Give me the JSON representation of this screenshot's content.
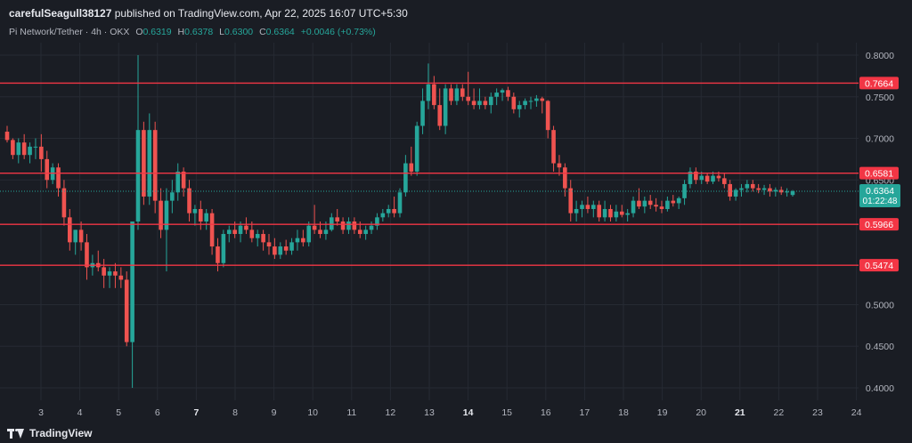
{
  "publisher": {
    "username": "carefulSeagull38127",
    "text": " published on TradingView.com, Apr 22, 2025 16:07 UTC+5:30"
  },
  "legend": {
    "symbol": "Pi Network/Tether · 4h · OKX",
    "open_label": "O",
    "open": "0.6319",
    "high_label": "H",
    "high": "0.6378",
    "low_label": "L",
    "low": "0.6300",
    "close_label": "C",
    "close": "0.6364",
    "change": "+0.0046 (+0.73%)"
  },
  "brand": "TradingView",
  "colors": {
    "background": "#1a1d24",
    "up": "#26a69a",
    "down": "#ef5350",
    "level_line": "#f23645",
    "grid": "#262a33"
  },
  "chart_data": {
    "type": "candlestick",
    "yaxis": {
      "ticks": [
        "0.8000",
        "0.7500",
        "0.7000",
        "0.6500",
        "0.5000",
        "0.4500",
        "0.4000"
      ],
      "ylim": [
        0.385,
        0.815
      ]
    },
    "xaxis": {
      "ticks": [
        "3",
        "4",
        "5",
        "6",
        "7",
        "8",
        "9",
        "10",
        "11",
        "12",
        "13",
        "14",
        "15",
        "16",
        "17",
        "18",
        "19",
        "20",
        "21",
        "22",
        "23",
        "24"
      ],
      "bold_ticks": [
        "7",
        "14",
        "21"
      ]
    },
    "horizontal_levels": [
      {
        "value": 0.7664,
        "label": "0.7664"
      },
      {
        "value": 0.6581,
        "label": "0.6581"
      },
      {
        "value": 0.5966,
        "label": "0.5966"
      },
      {
        "value": 0.5474,
        "label": "0.5474"
      }
    ],
    "last_price": {
      "value": 0.6364,
      "label": "0.6364",
      "countdown": "01:22:48"
    },
    "candles": [
      [
        0.708,
        0.715,
        0.695,
        0.698
      ],
      [
        0.698,
        0.7,
        0.675,
        0.68
      ],
      [
        0.68,
        0.7,
        0.67,
        0.695
      ],
      [
        0.695,
        0.705,
        0.675,
        0.68
      ],
      [
        0.68,
        0.695,
        0.67,
        0.69
      ],
      [
        0.69,
        0.7,
        0.675,
        0.69
      ],
      [
        0.69,
        0.705,
        0.66,
        0.675
      ],
      [
        0.675,
        0.685,
        0.64,
        0.65
      ],
      [
        0.65,
        0.67,
        0.645,
        0.665
      ],
      [
        0.665,
        0.67,
        0.63,
        0.64
      ],
      [
        0.64,
        0.65,
        0.595,
        0.605
      ],
      [
        0.605,
        0.615,
        0.565,
        0.575
      ],
      [
        0.575,
        0.59,
        0.56,
        0.59
      ],
      [
        0.59,
        0.6,
        0.565,
        0.575
      ],
      [
        0.575,
        0.585,
        0.53,
        0.545
      ],
      [
        0.545,
        0.56,
        0.535,
        0.55
      ],
      [
        0.55,
        0.565,
        0.54,
        0.545
      ],
      [
        0.545,
        0.555,
        0.52,
        0.535
      ],
      [
        0.535,
        0.545,
        0.52,
        0.54
      ],
      [
        0.54,
        0.55,
        0.52,
        0.535
      ],
      [
        0.535,
        0.545,
        0.52,
        0.53
      ],
      [
        0.53,
        0.54,
        0.45,
        0.455
      ],
      [
        0.455,
        0.6,
        0.4,
        0.6
      ],
      [
        0.6,
        0.8,
        0.59,
        0.71
      ],
      [
        0.71,
        0.72,
        0.62,
        0.63
      ],
      [
        0.63,
        0.73,
        0.62,
        0.71
      ],
      [
        0.71,
        0.72,
        0.61,
        0.625
      ],
      [
        0.625,
        0.64,
        0.58,
        0.59
      ],
      [
        0.59,
        0.64,
        0.54,
        0.625
      ],
      [
        0.625,
        0.65,
        0.61,
        0.635
      ],
      [
        0.635,
        0.67,
        0.625,
        0.66
      ],
      [
        0.66,
        0.665,
        0.63,
        0.64
      ],
      [
        0.64,
        0.65,
        0.6,
        0.61
      ],
      [
        0.61,
        0.62,
        0.595,
        0.615
      ],
      [
        0.615,
        0.625,
        0.59,
        0.6
      ],
      [
        0.6,
        0.615,
        0.59,
        0.61
      ],
      [
        0.61,
        0.615,
        0.56,
        0.57
      ],
      [
        0.57,
        0.58,
        0.54,
        0.55
      ],
      [
        0.55,
        0.59,
        0.545,
        0.585
      ],
      [
        0.585,
        0.595,
        0.575,
        0.59
      ],
      [
        0.59,
        0.6,
        0.58,
        0.585
      ],
      [
        0.585,
        0.6,
        0.575,
        0.595
      ],
      [
        0.595,
        0.605,
        0.585,
        0.59
      ],
      [
        0.59,
        0.6,
        0.575,
        0.58
      ],
      [
        0.58,
        0.59,
        0.57,
        0.585
      ],
      [
        0.585,
        0.59,
        0.565,
        0.575
      ],
      [
        0.575,
        0.585,
        0.56,
        0.57
      ],
      [
        0.57,
        0.58,
        0.555,
        0.56
      ],
      [
        0.56,
        0.575,
        0.555,
        0.57
      ],
      [
        0.57,
        0.578,
        0.56,
        0.565
      ],
      [
        0.565,
        0.58,
        0.56,
        0.575
      ],
      [
        0.575,
        0.59,
        0.565,
        0.58
      ],
      [
        0.58,
        0.59,
        0.57,
        0.575
      ],
      [
        0.575,
        0.6,
        0.57,
        0.595
      ],
      [
        0.595,
        0.62,
        0.585,
        0.59
      ],
      [
        0.59,
        0.6,
        0.58,
        0.585
      ],
      [
        0.585,
        0.6,
        0.578,
        0.59
      ],
      [
        0.59,
        0.61,
        0.588,
        0.605
      ],
      [
        0.605,
        0.615,
        0.595,
        0.6
      ],
      [
        0.6,
        0.605,
        0.585,
        0.59
      ],
      [
        0.59,
        0.605,
        0.585,
        0.6
      ],
      [
        0.6,
        0.605,
        0.585,
        0.59
      ],
      [
        0.59,
        0.6,
        0.58,
        0.585
      ],
      [
        0.585,
        0.595,
        0.578,
        0.59
      ],
      [
        0.59,
        0.6,
        0.585,
        0.595
      ],
      [
        0.595,
        0.61,
        0.59,
        0.605
      ],
      [
        0.605,
        0.615,
        0.6,
        0.61
      ],
      [
        0.61,
        0.62,
        0.605,
        0.615
      ],
      [
        0.615,
        0.63,
        0.605,
        0.61
      ],
      [
        0.61,
        0.64,
        0.605,
        0.635
      ],
      [
        0.635,
        0.68,
        0.63,
        0.67
      ],
      [
        0.67,
        0.69,
        0.655,
        0.66
      ],
      [
        0.66,
        0.72,
        0.655,
        0.715
      ],
      [
        0.715,
        0.76,
        0.705,
        0.745
      ],
      [
        0.745,
        0.79,
        0.735,
        0.765
      ],
      [
        0.765,
        0.775,
        0.735,
        0.74
      ],
      [
        0.74,
        0.76,
        0.71,
        0.715
      ],
      [
        0.715,
        0.765,
        0.705,
        0.76
      ],
      [
        0.76,
        0.765,
        0.74,
        0.745
      ],
      [
        0.745,
        0.765,
        0.74,
        0.76
      ],
      [
        0.76,
        0.765,
        0.745,
        0.75
      ],
      [
        0.75,
        0.78,
        0.74,
        0.745
      ],
      [
        0.745,
        0.76,
        0.735,
        0.74
      ],
      [
        0.74,
        0.76,
        0.735,
        0.745
      ],
      [
        0.745,
        0.75,
        0.735,
        0.74
      ],
      [
        0.74,
        0.755,
        0.73,
        0.75
      ],
      [
        0.75,
        0.76,
        0.74,
        0.755
      ],
      [
        0.755,
        0.76,
        0.745,
        0.758
      ],
      [
        0.758,
        0.762,
        0.745,
        0.75
      ],
      [
        0.75,
        0.755,
        0.73,
        0.735
      ],
      [
        0.735,
        0.745,
        0.725,
        0.74
      ],
      [
        0.74,
        0.748,
        0.735,
        0.745
      ],
      [
        0.745,
        0.75,
        0.735,
        0.745
      ],
      [
        0.745,
        0.752,
        0.738,
        0.748
      ],
      [
        0.748,
        0.75,
        0.73,
        0.745
      ],
      [
        0.745,
        0.746,
        0.7,
        0.71
      ],
      [
        0.71,
        0.715,
        0.66,
        0.67
      ],
      [
        0.67,
        0.68,
        0.655,
        0.665
      ],
      [
        0.665,
        0.67,
        0.63,
        0.64
      ],
      [
        0.64,
        0.65,
        0.6,
        0.61
      ],
      [
        0.61,
        0.625,
        0.6,
        0.615
      ],
      [
        0.615,
        0.625,
        0.605,
        0.62
      ],
      [
        0.62,
        0.63,
        0.61,
        0.615
      ],
      [
        0.615,
        0.625,
        0.605,
        0.62
      ],
      [
        0.62,
        0.625,
        0.6,
        0.605
      ],
      [
        0.605,
        0.625,
        0.6,
        0.615
      ],
      [
        0.615,
        0.62,
        0.6,
        0.605
      ],
      [
        0.605,
        0.62,
        0.6,
        0.612
      ],
      [
        0.612,
        0.62,
        0.605,
        0.608
      ],
      [
        0.608,
        0.615,
        0.6,
        0.61
      ],
      [
        0.61,
        0.63,
        0.605,
        0.625
      ],
      [
        0.625,
        0.64,
        0.615,
        0.618
      ],
      [
        0.618,
        0.63,
        0.61,
        0.625
      ],
      [
        0.625,
        0.632,
        0.615,
        0.62
      ],
      [
        0.62,
        0.628,
        0.612,
        0.618
      ],
      [
        0.618,
        0.625,
        0.61,
        0.615
      ],
      [
        0.615,
        0.63,
        0.612,
        0.625
      ],
      [
        0.625,
        0.632,
        0.618,
        0.622
      ],
      [
        0.622,
        0.63,
        0.615,
        0.628
      ],
      [
        0.628,
        0.65,
        0.62,
        0.645
      ],
      [
        0.645,
        0.665,
        0.64,
        0.66
      ],
      [
        0.66,
        0.665,
        0.645,
        0.65
      ],
      [
        0.65,
        0.66,
        0.645,
        0.655
      ],
      [
        0.655,
        0.658,
        0.645,
        0.648
      ],
      [
        0.648,
        0.66,
        0.645,
        0.655
      ],
      [
        0.655,
        0.66,
        0.648,
        0.652
      ],
      [
        0.652,
        0.658,
        0.64,
        0.645
      ],
      [
        0.645,
        0.65,
        0.625,
        0.63
      ],
      [
        0.63,
        0.64,
        0.625,
        0.638
      ],
      [
        0.638,
        0.645,
        0.63,
        0.64
      ],
      [
        0.64,
        0.65,
        0.635,
        0.645
      ],
      [
        0.645,
        0.65,
        0.636,
        0.64
      ],
      [
        0.64,
        0.645,
        0.634,
        0.638
      ],
      [
        0.638,
        0.644,
        0.632,
        0.64
      ],
      [
        0.64,
        0.645,
        0.63,
        0.636
      ],
      [
        0.636,
        0.641,
        0.63,
        0.638
      ],
      [
        0.638,
        0.642,
        0.632,
        0.635
      ],
      [
        0.635,
        0.64,
        0.63,
        0.636
      ],
      [
        0.6319,
        0.6378,
        0.63,
        0.6364
      ]
    ]
  }
}
